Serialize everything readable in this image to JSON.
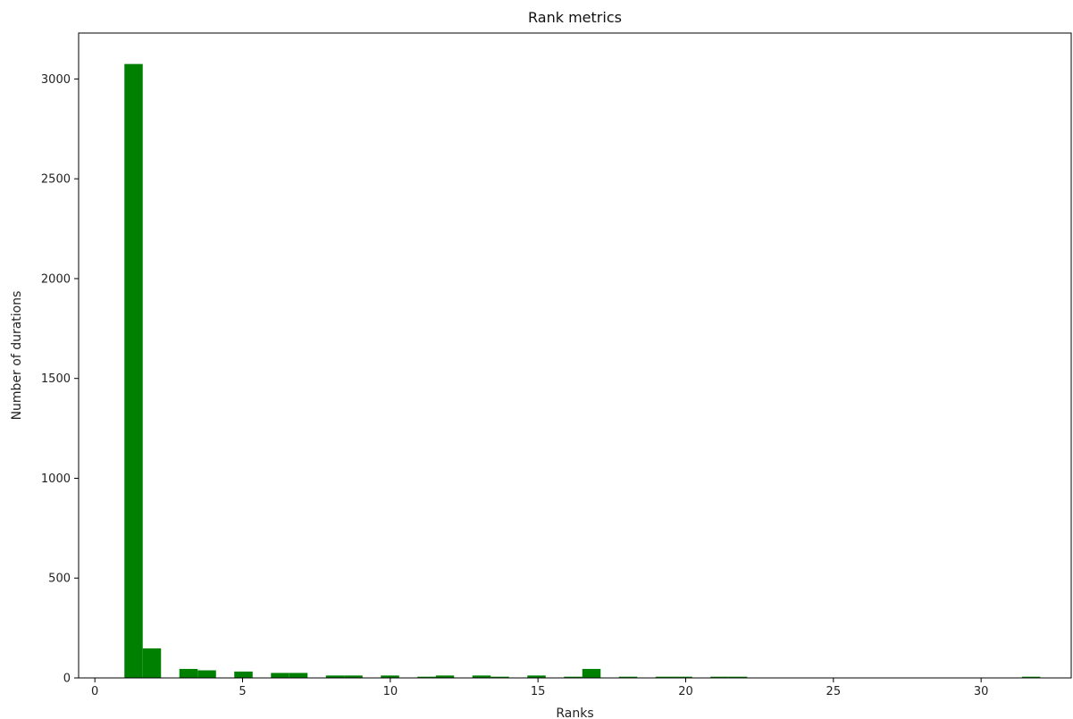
{
  "chart_data": {
    "type": "bar",
    "title": "Rank metrics",
    "xlabel": "Ranks",
    "ylabel": "Number of durations",
    "xlim": [
      -0.55,
      33.05
    ],
    "ylim": [
      0,
      3230
    ],
    "xticks": [
      0,
      5,
      10,
      15,
      20,
      25,
      30
    ],
    "yticks": [
      0,
      500,
      1000,
      1500,
      2000,
      2500,
      3000
    ],
    "bar_color": "#008000",
    "grid": false,
    "bars": [
      {
        "x0": 1.0,
        "x1": 1.62,
        "value": 3075
      },
      {
        "x0": 1.62,
        "x1": 2.24,
        "value": 148
      },
      {
        "x0": 2.86,
        "x1": 3.48,
        "value": 45
      },
      {
        "x0": 3.48,
        "x1": 4.1,
        "value": 38
      },
      {
        "x0": 4.72,
        "x1": 5.34,
        "value": 32
      },
      {
        "x0": 5.96,
        "x1": 6.58,
        "value": 25
      },
      {
        "x0": 6.58,
        "x1": 7.2,
        "value": 25
      },
      {
        "x0": 7.82,
        "x1": 8.44,
        "value": 12
      },
      {
        "x0": 8.44,
        "x1": 9.06,
        "value": 12
      },
      {
        "x0": 9.68,
        "x1": 10.3,
        "value": 12
      },
      {
        "x0": 10.92,
        "x1": 11.54,
        "value": 6
      },
      {
        "x0": 11.54,
        "x1": 12.16,
        "value": 12
      },
      {
        "x0": 12.78,
        "x1": 13.4,
        "value": 12
      },
      {
        "x0": 13.4,
        "x1": 14.02,
        "value": 6
      },
      {
        "x0": 14.64,
        "x1": 15.26,
        "value": 12
      },
      {
        "x0": 15.88,
        "x1": 16.5,
        "value": 6
      },
      {
        "x0": 16.5,
        "x1": 17.12,
        "value": 45
      },
      {
        "x0": 17.74,
        "x1": 18.36,
        "value": 6
      },
      {
        "x0": 18.98,
        "x1": 19.6,
        "value": 6
      },
      {
        "x0": 19.6,
        "x1": 20.22,
        "value": 6
      },
      {
        "x0": 20.84,
        "x1": 21.46,
        "value": 6
      },
      {
        "x0": 21.46,
        "x1": 22.08,
        "value": 6
      },
      {
        "x0": 31.38,
        "x1": 32.0,
        "value": 6
      }
    ]
  }
}
